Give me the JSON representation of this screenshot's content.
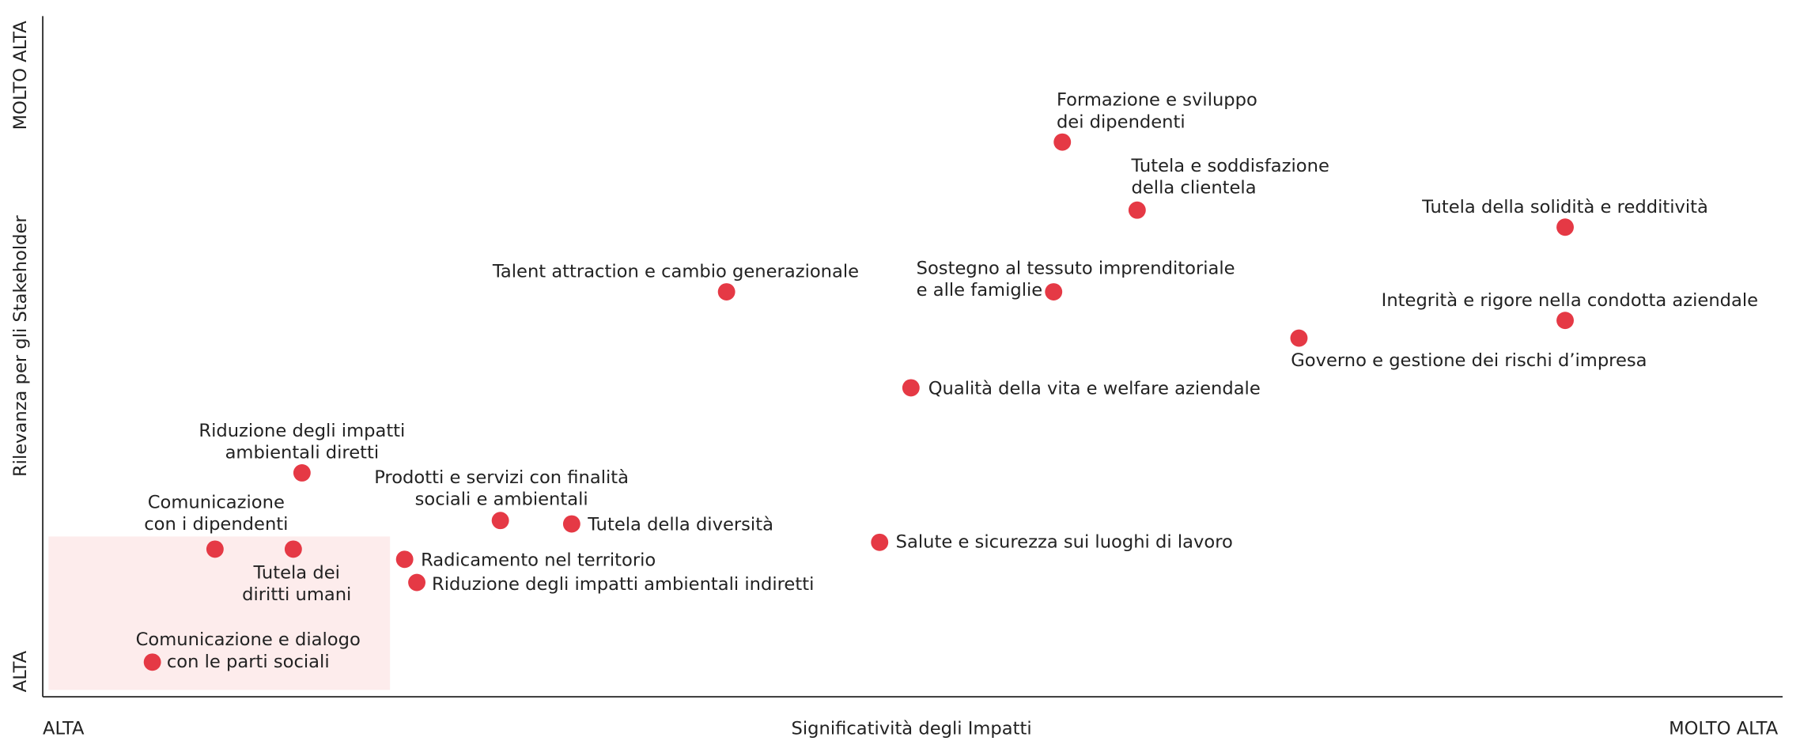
{
  "chart_data": {
    "type": "scatter",
    "xlabel": "Significatività degli Impatti",
    "ylabel": "Rilevanza per gli Stakeholder",
    "xlim": [
      0,
      100
    ],
    "ylim": [
      0,
      100
    ],
    "xticks": [
      {
        "value": 0,
        "label": "ALTA"
      },
      {
        "value": 100,
        "label": "MOLTO ALTA"
      }
    ],
    "yticks": [
      {
        "value": 0,
        "label": "ALTA"
      },
      {
        "value": 100,
        "label": "MOLTO ALTA"
      }
    ],
    "color": "#e53945",
    "labels": [
      [
        "Formazione e sviluppo",
        "dei dipendenti"
      ],
      [
        "Tutela e soddisfazione",
        "della clientela"
      ],
      [
        "Tutela della solidità e redditività"
      ],
      [
        "Talent attraction e cambio generazionale"
      ],
      [
        "Sostegno al tessuto imprenditoriale",
        "e alle famiglie"
      ],
      [
        "Integrità e rigore nella condotta aziendale"
      ],
      [
        "Governo e gestione dei rischi d’impresa"
      ],
      [
        "Qualità della vita e welfare aziendale"
      ],
      [
        "Riduzione degli impatti",
        "ambientali diretti"
      ],
      [
        "Prodotti e servizi con finalità",
        "sociali e ambientali"
      ],
      [
        "Tutela della diversità"
      ],
      [
        "Salute e sicurezza sui luoghi di lavoro"
      ],
      [
        "Comunicazione",
        "con i dipendenti"
      ],
      [
        "Tutela dei",
        "diritti umani"
      ],
      [
        "Radicamento nel territorio"
      ],
      [
        "Riduzione degli impatti ambientali indiretti"
      ],
      [
        "Comunicazione e dialogo",
        "con le parti sociali"
      ]
    ],
    "x": [
      58.6,
      62.9,
      87.5,
      39.3,
      58.1,
      87.5,
      72.2,
      49.9,
      14.9,
      26.3,
      30.4,
      48.1,
      9.9,
      14.4,
      20.8,
      21.5,
      6.3
    ],
    "values": [
      81.5,
      71.5,
      69.0,
      59.5,
      59.5,
      55.3,
      52.7,
      45.4,
      32.9,
      25.9,
      25.4,
      22.7,
      21.7,
      21.7,
      20.2,
      16.8,
      5.1
    ]
  }
}
